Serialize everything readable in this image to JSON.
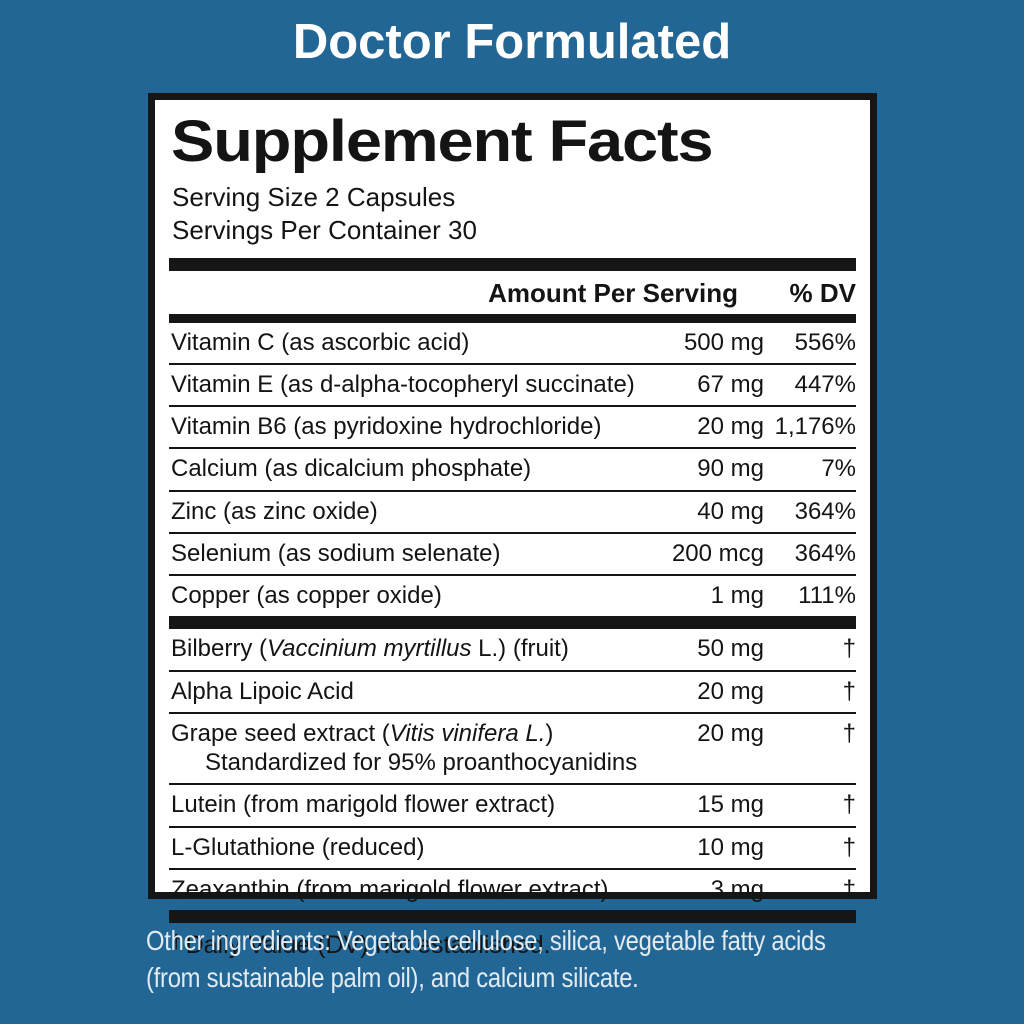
{
  "header": {
    "title": "Doctor Formulated"
  },
  "label": {
    "title": "Supplement Facts",
    "serving_size": "Serving Size 2 Capsules",
    "servings_per_container": "Servings Per Container 30",
    "columns": {
      "amount": "Amount Per Serving",
      "dv": "% DV"
    },
    "rows": [
      {
        "name_pre": "Vitamin C (as ascorbic acid)",
        "amount": "500 mg",
        "dv": "556%"
      },
      {
        "name_pre": "Vitamin E (as d-alpha-tocopheryl succinate)",
        "amount": "67 mg",
        "dv": "447%"
      },
      {
        "name_pre": "Vitamin B6 (as pyridoxine hydrochloride)",
        "amount": "20 mg",
        "dv": "1,176%"
      },
      {
        "name_pre": "Calcium (as dicalcium phosphate)",
        "amount": "90 mg",
        "dv": "7%"
      },
      {
        "name_pre": "Zinc (as zinc oxide)",
        "amount": "40 mg",
        "dv": "364%"
      },
      {
        "name_pre": "Selenium (as sodium selenate)",
        "amount": "200 mcg",
        "dv": "364%"
      },
      {
        "name_pre": "Copper (as copper oxide)",
        "amount": "1 mg",
        "dv": "111%"
      },
      {
        "name_pre": "Bilberry (",
        "name_italic": "Vaccinium myrtillus",
        "name_post": " L.) (fruit)",
        "amount": "50 mg",
        "dv": "†"
      },
      {
        "name_pre": "Alpha Lipoic Acid",
        "amount": "20 mg",
        "dv": "†"
      },
      {
        "name_pre": "Grape seed extract (",
        "name_italic": "Vitis vinifera L.",
        "name_post": ")",
        "name_line2": "Standardized for 95% proanthocyanidins",
        "amount": "20 mg",
        "dv": "†"
      },
      {
        "name_pre": "Lutein (from marigold flower extract)",
        "amount": "15 mg",
        "dv": "†"
      },
      {
        "name_pre": "L-Glutathione (reduced)",
        "amount": "10 mg",
        "dv": "†"
      },
      {
        "name_pre": "Zeaxanthin (from marigold flower extract)",
        "amount": "3 mg",
        "dv": "†"
      }
    ],
    "footnote": {
      "symbol": "†",
      "text": "Daily Value (DV) not established."
    }
  },
  "other_ingredients": {
    "line1": "Other ingredients: Vegetable cellulose, silica, vegetable fatty acids",
    "line2": "(from sustainable palm oil), and calcium silicate."
  },
  "colors": {
    "background": "#226695",
    "panel": "#ffffff",
    "ink": "#141414",
    "light_text": "#e2ebf1"
  }
}
